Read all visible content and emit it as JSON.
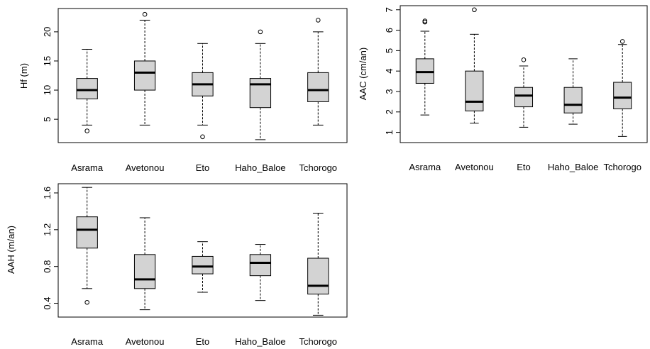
{
  "chart_data": [
    {
      "type": "box",
      "xlabel": "",
      "ylabel": "Hf (m)",
      "ylim": [
        1,
        24
      ],
      "yticks": [
        5,
        10,
        15,
        20
      ],
      "categories": [
        "Asrama",
        "Avetonou",
        "Eto",
        "Haho_Baloe",
        "Tchorogo"
      ],
      "boxes": [
        {
          "category": "Asrama",
          "min": 4,
          "q1": 8.5,
          "median": 10,
          "q3": 12,
          "max": 17,
          "outliers": [
            3
          ]
        },
        {
          "category": "Avetonou",
          "min": 4,
          "q1": 10,
          "median": 13,
          "q3": 15,
          "max": 22,
          "outliers": [
            23
          ]
        },
        {
          "category": "Eto",
          "min": 4,
          "q1": 9,
          "median": 11,
          "q3": 13,
          "max": 18,
          "outliers": [
            2
          ]
        },
        {
          "category": "Haho_Baloe",
          "min": 1.5,
          "q1": 7,
          "median": 11,
          "q3": 12,
          "max": 18,
          "outliers": [
            20
          ]
        },
        {
          "category": "Tchorogo",
          "min": 4,
          "q1": 8,
          "median": 10,
          "q3": 13,
          "max": 20,
          "outliers": [
            22
          ]
        }
      ]
    },
    {
      "type": "box",
      "xlabel": "",
      "ylabel": "AAC (cm/an)",
      "ylim": [
        0.5,
        7.2
      ],
      "yticks": [
        1,
        2,
        3,
        4,
        5,
        6,
        7
      ],
      "categories": [
        "Asrama",
        "Avetonou",
        "Eto",
        "Haho_Baloe",
        "Tchorogo"
      ],
      "boxes": [
        {
          "category": "Asrama",
          "min": 1.85,
          "q1": 3.4,
          "median": 3.95,
          "q3": 4.6,
          "max": 5.95,
          "outliers": [
            6.4,
            6.45
          ]
        },
        {
          "category": "Avetonou",
          "min": 1.45,
          "q1": 2.05,
          "median": 2.5,
          "q3": 4.0,
          "max": 5.8,
          "outliers": [
            7.0
          ]
        },
        {
          "category": "Eto",
          "min": 1.25,
          "q1": 2.25,
          "median": 2.8,
          "q3": 3.2,
          "max": 4.25,
          "outliers": [
            4.55
          ]
        },
        {
          "category": "Haho_Baloe",
          "min": 1.4,
          "q1": 1.95,
          "median": 2.35,
          "q3": 3.2,
          "max": 4.6,
          "outliers": []
        },
        {
          "category": "Tchorogo",
          "min": 0.8,
          "q1": 2.15,
          "median": 2.7,
          "q3": 3.45,
          "max": 5.3,
          "outliers": [
            5.45
          ]
        }
      ]
    },
    {
      "type": "box",
      "xlabel": "",
      "ylabel": "AAH (m/an)",
      "ylim": [
        0.25,
        1.7
      ],
      "yticks": [
        0.4,
        0.8,
        1.2,
        1.6
      ],
      "categories": [
        "Asrama",
        "Avetonou",
        "Eto",
        "Haho_Baloe",
        "Tchorogo"
      ],
      "boxes": [
        {
          "category": "Asrama",
          "min": 0.56,
          "q1": 1.0,
          "median": 1.2,
          "q3": 1.34,
          "max": 1.66,
          "outliers": [
            0.41
          ]
        },
        {
          "category": "Avetonou",
          "min": 0.33,
          "q1": 0.56,
          "median": 0.66,
          "q3": 0.93,
          "max": 1.33,
          "outliers": []
        },
        {
          "category": "Eto",
          "min": 0.52,
          "q1": 0.72,
          "median": 0.8,
          "q3": 0.91,
          "max": 1.07,
          "outliers": []
        },
        {
          "category": "Haho_Baloe",
          "min": 0.43,
          "q1": 0.7,
          "median": 0.84,
          "q3": 0.93,
          "max": 1.04,
          "outliers": []
        },
        {
          "category": "Tchorogo",
          "min": 0.27,
          "q1": 0.5,
          "median": 0.59,
          "q3": 0.89,
          "max": 1.38,
          "outliers": []
        }
      ]
    }
  ],
  "style": {
    "box_fill": "#d3d3d3",
    "line_color": "#000000"
  }
}
